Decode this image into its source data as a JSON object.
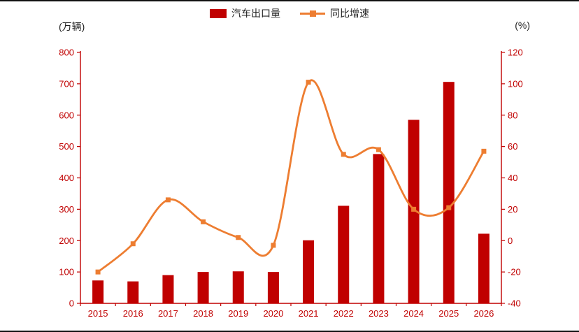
{
  "legend": [
    {
      "label": "汽车出口量",
      "kind": "bar",
      "color": "#c00000"
    },
    {
      "label": "同比增速",
      "kind": "line",
      "color": "#ed7d31"
    }
  ],
  "chart_data": {
    "type": "combo-bar-line",
    "categories": [
      "2015",
      "2016",
      "2017",
      "2018",
      "2019",
      "2020",
      "2021",
      "2022",
      "2023",
      "2024",
      "2025",
      "2026"
    ],
    "series": [
      {
        "name": "汽车出口量",
        "chart": "bar",
        "axis": "left",
        "color": "#c00000",
        "values": [
          73,
          70,
          90,
          100,
          102,
          100,
          201,
          311,
          476,
          585,
          706,
          222
        ]
      },
      {
        "name": "同比增速",
        "chart": "line",
        "axis": "right",
        "color": "#ed7d31",
        "values": [
          -20,
          -2,
          26,
          12,
          2,
          -3,
          101,
          55,
          58,
          20,
          21,
          57
        ]
      }
    ],
    "left_axis": {
      "title": "(万辆)",
      "min": 0,
      "max": 800,
      "step": 100
    },
    "right_axis": {
      "title": "(%)",
      "min": -40,
      "max": 120,
      "step": 20
    },
    "grid": false,
    "legend_position": "top-center",
    "axis_label_color": "#c00000"
  }
}
